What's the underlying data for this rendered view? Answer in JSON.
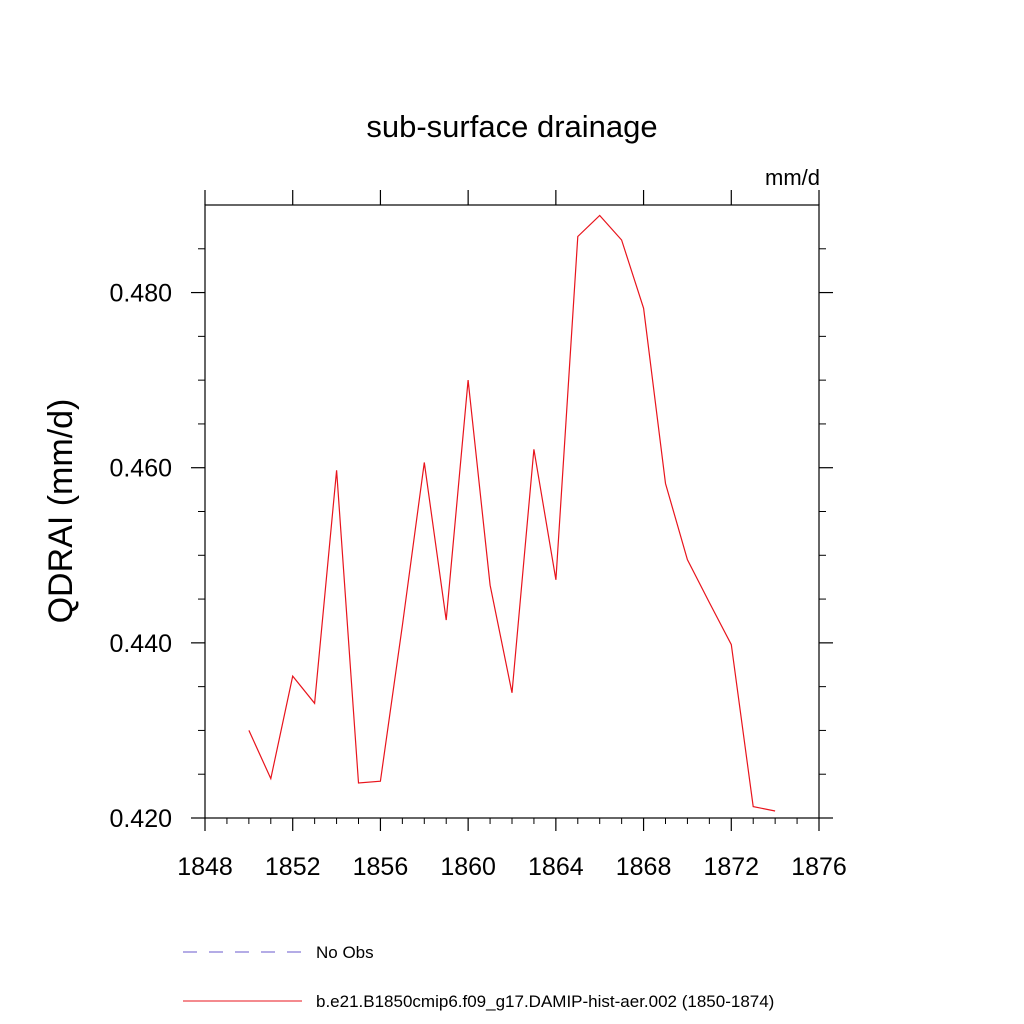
{
  "chart_data": {
    "type": "line",
    "title": "sub-surface drainage",
    "units": "mm/d",
    "ylabel": "QDRAI  (mm/d)",
    "xlabel": "",
    "xlim": [
      1848,
      1876
    ],
    "ylim": [
      0.42,
      0.49
    ],
    "x_ticks": [
      1848,
      1852,
      1856,
      1860,
      1864,
      1868,
      1872,
      1876
    ],
    "x_tick_labels": [
      "1848",
      "1852",
      "1856",
      "1860",
      "1864",
      "1868",
      "1872",
      "1876"
    ],
    "y_ticks": [
      0.42,
      0.44,
      0.46,
      0.48
    ],
    "y_tick_labels": [
      "0.420",
      "0.440",
      "0.460",
      "0.480"
    ],
    "grid": false,
    "legend_position": "bottom",
    "series": [
      {
        "name": "b.e21.B1850cmip6.f09_g17.DAMIP-hist-aer.002 (1850-1874)",
        "color": "#e8141c",
        "style": "solid",
        "x": [
          1850,
          1851,
          1852,
          1853,
          1854,
          1855,
          1856,
          1857,
          1858,
          1859,
          1860,
          1861,
          1862,
          1863,
          1864,
          1865,
          1866,
          1867,
          1868,
          1869,
          1870,
          1871,
          1872,
          1873,
          1874
        ],
        "y": [
          0.43,
          0.4245,
          0.4362,
          0.4331,
          0.4597,
          0.424,
          0.4242,
          0.442,
          0.4606,
          0.4426,
          0.47,
          0.4466,
          0.4343,
          0.4621,
          0.4472,
          0.4864,
          0.4888,
          0.486,
          0.4782,
          0.4582,
          0.4495,
          0.4446,
          0.4398,
          0.4213,
          0.4208
        ]
      },
      {
        "name": "No Obs",
        "color": "#6a5acd",
        "style": "dashed",
        "x": [],
        "y": []
      }
    ]
  }
}
